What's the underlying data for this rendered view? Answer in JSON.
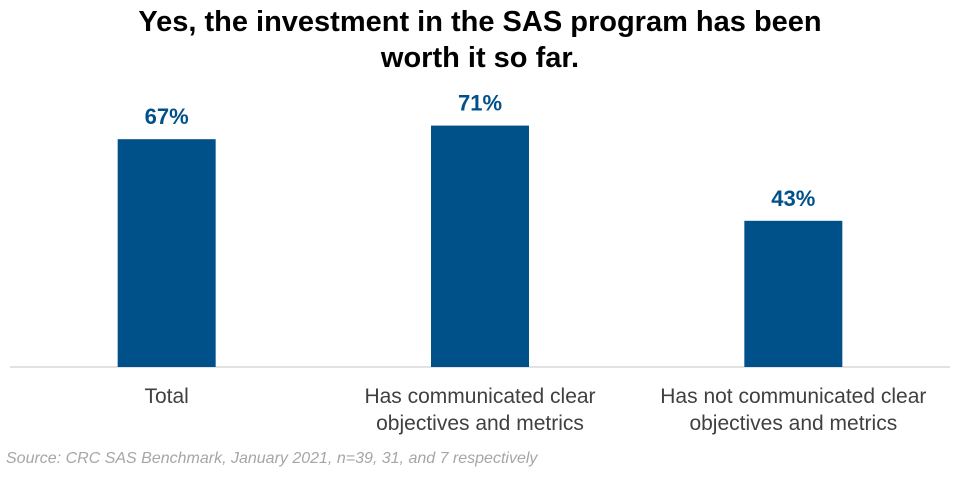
{
  "chart_data": {
    "type": "bar",
    "title_lines": [
      "Yes, the investment in the SAS program has been",
      "worth it so far."
    ],
    "categories": [
      [
        "Total"
      ],
      [
        "Has communicated clear",
        "objectives and metrics"
      ],
      [
        "Has not communicated clear",
        "objectives and metrics"
      ]
    ],
    "values": [
      67,
      71,
      43
    ],
    "data_labels": [
      "67%",
      "71%",
      "43%"
    ],
    "ylim": [
      0,
      100
    ],
    "grid": false,
    "legend": "none",
    "bar_color": "#00508A",
    "label_color": "#00508A"
  },
  "source": "Source: CRC SAS Benchmark, January 2021, n=39, 31, and 7 respectively"
}
